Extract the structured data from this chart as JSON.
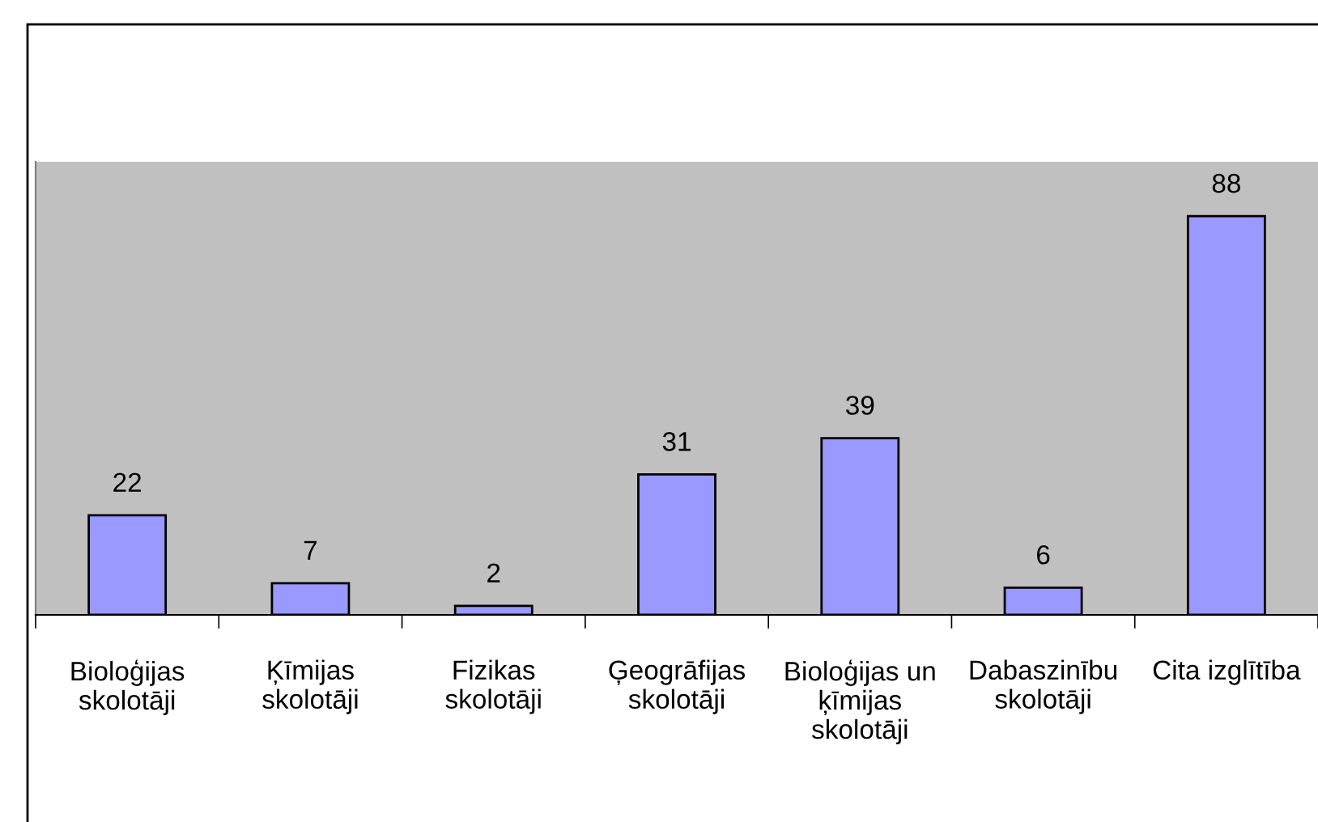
{
  "chart_data": {
    "type": "bar",
    "categories": [
      "Bioloģijas\nskolotāji",
      "Ķīmijas\nskolotāji",
      "Fizikas\nskolotāji",
      "Ģeogrāfijas\nskolotāji",
      "Bioloģijas un\nķīmijas\nskolotāji",
      "Dabaszinību\nskolotāji",
      "Cita izglītība"
    ],
    "values": [
      22,
      7,
      2,
      31,
      39,
      6,
      88
    ],
    "color": "#9999ff",
    "ylim": [
      0,
      100
    ],
    "data_labels": true,
    "grid": false,
    "legend": false
  }
}
